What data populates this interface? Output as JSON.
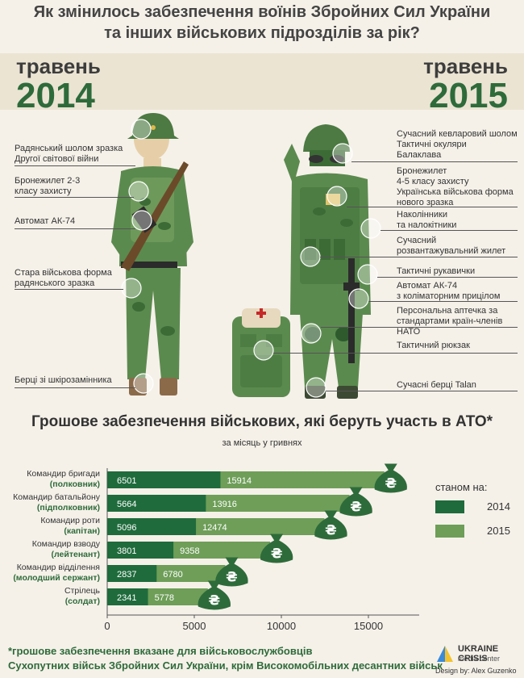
{
  "title_line1": "Як змінилось забезпечення воїнів Збройних Сил України",
  "title_line2": "та інших військових підрозділів за рік?",
  "left": {
    "month": "травень",
    "year": "2014",
    "labels": [
      "Радянський шолом зразка Другої світової війни",
      "Бронежилет 2-3 класу захисту",
      "Автомат АК-74",
      "Стара військова форма радянського зразка",
      "Берці зі шкірозамінника"
    ]
  },
  "right": {
    "month": "травень",
    "year": "2015",
    "labels": [
      "Сучасний кевларовий шолом",
      "Тактичні окуляри",
      "Балаклава",
      "Бронежилет",
      "4-5 класу захисту",
      "Українська військова форма",
      "нового зразка",
      "Наколінники",
      "та налокітники",
      "Сучасний",
      "розвантажувальний жилет",
      "Тактичні рукавички",
      "Автомат АК-74",
      "з коліматорним прицілом",
      "Персональна аптечка за",
      "стандартами країн-членів НАТО",
      "Тактичний рюкзак",
      "Сучасні берці Talan"
    ]
  },
  "chart_data": {
    "type": "bar",
    "title": "Грошове забезпечення військових, які беруть участь в АТО*",
    "subtitle": "за місяць у гривнях",
    "categories": [
      {
        "name": "Командир бригади",
        "rank": "(полковник)"
      },
      {
        "name": "Командир батальйону",
        "rank": "(підполковник)"
      },
      {
        "name": "Командир роти",
        "rank": "(капітан)"
      },
      {
        "name": "Командир взводу",
        "rank": "(лейтенант)"
      },
      {
        "name": "Командир відділення",
        "rank": "(молодший сержант)"
      },
      {
        "name": "Стрілець",
        "rank": "(солдат)"
      }
    ],
    "series": [
      {
        "name": "2014",
        "color": "#1f6b3c",
        "values": [
          6501,
          5664,
          5096,
          3801,
          2837,
          2341
        ]
      },
      {
        "name": "2015",
        "color": "#6e9e58",
        "values": [
          15914,
          13916,
          12474,
          9358,
          6780,
          5778
        ]
      }
    ],
    "xlim": [
      0,
      17000
    ],
    "xticks": [
      0,
      5000,
      10000,
      15000
    ],
    "legend_title": "станом на:",
    "legend_position": "right",
    "currency_symbol": "₴"
  },
  "footnote_line1": "*грошове забезпечення вказане для військовослужбовців",
  "footnote_line2": "Сухопутних військ Збройних Сил України, крім Високомобільних десантних військ",
  "logo_line1": "UKRAINE CRISIS",
  "logo_line2": "media center",
  "design_credit": "Design by: Alex Guzenko"
}
